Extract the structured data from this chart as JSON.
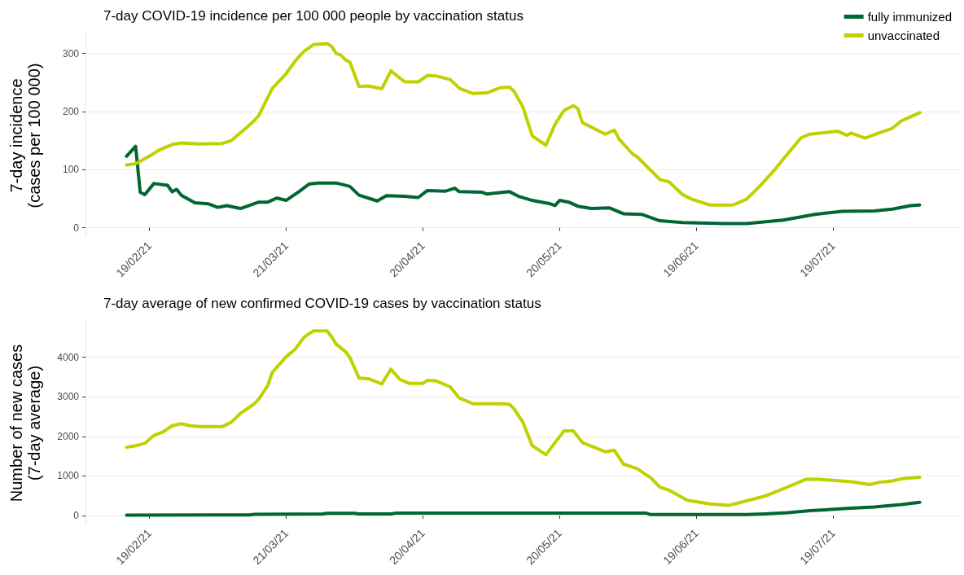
{
  "chart_data": [
    {
      "type": "line",
      "title": "7-day COVID-19 incidence per 100 000 people by vaccination status",
      "ylabel": "7-day incidence\n(cases per 100 000)",
      "legend": "top right",
      "grid": "y",
      "xlim": [
        "2021-02-05",
        "2021-08-16"
      ],
      "ylim": [
        -16,
        333
      ],
      "yticks": [
        0,
        100,
        200,
        300
      ],
      "xticks": [
        {
          "value": "2021-02-19",
          "label": "19/02/21"
        },
        {
          "value": "2021-03-21",
          "label": "21/03/21"
        },
        {
          "value": "2021-04-20",
          "label": "20/04/21"
        },
        {
          "value": "2021-05-20",
          "label": "20/05/21"
        },
        {
          "value": "2021-06-19",
          "label": "19/06/21"
        },
        {
          "value": "2021-07-19",
          "label": "19/07/21"
        }
      ],
      "series": [
        {
          "name": "fully immunized",
          "color": "#006633",
          "x": [
            "2021-02-14",
            "2021-02-16",
            "2021-02-17",
            "2021-02-18",
            "2021-02-20",
            "2021-02-23",
            "2021-02-24",
            "2021-02-25",
            "2021-02-26",
            "2021-03-01",
            "2021-03-04",
            "2021-03-06",
            "2021-03-08",
            "2021-03-11",
            "2021-03-15",
            "2021-03-17",
            "2021-03-19",
            "2021-03-21",
            "2021-03-24",
            "2021-03-26",
            "2021-03-28",
            "2021-04-01",
            "2021-04-04",
            "2021-04-06",
            "2021-04-10",
            "2021-04-12",
            "2021-04-16",
            "2021-04-19",
            "2021-04-21",
            "2021-04-25",
            "2021-04-27",
            "2021-04-28",
            "2021-05-03",
            "2021-05-04",
            "2021-05-09",
            "2021-05-11",
            "2021-05-14",
            "2021-05-18",
            "2021-05-19",
            "2021-05-20",
            "2021-05-22",
            "2021-05-24",
            "2021-05-27",
            "2021-05-31",
            "2021-06-03",
            "2021-06-07",
            "2021-06-11",
            "2021-06-16",
            "2021-06-25",
            "2021-06-30",
            "2021-07-08",
            "2021-07-15",
            "2021-07-21",
            "2021-07-28",
            "2021-08-01",
            "2021-08-05",
            "2021-08-07"
          ],
          "values": [
            123,
            140,
            61,
            57,
            76,
            73,
            62,
            66,
            56,
            43,
            41,
            35,
            38,
            33,
            44,
            44,
            51,
            47,
            63,
            75,
            77,
            77,
            71,
            56,
            46,
            55,
            54,
            52,
            64,
            63,
            68,
            62,
            61,
            58,
            62,
            54,
            47,
            41,
            38,
            47,
            44,
            37,
            33,
            34,
            24,
            23,
            12,
            9,
            7,
            7,
            13,
            23,
            28,
            29,
            32,
            38,
            39
          ]
        },
        {
          "name": "unvaccinated",
          "color": "#bfd200",
          "x": [
            "2021-02-14",
            "2021-02-16",
            "2021-02-19",
            "2021-02-21",
            "2021-02-24",
            "2021-02-26",
            "2021-03-02",
            "2021-03-07",
            "2021-03-09",
            "2021-03-12",
            "2021-03-14",
            "2021-03-15",
            "2021-03-18",
            "2021-03-21",
            "2021-03-23",
            "2021-03-25",
            "2021-03-27",
            "2021-03-30",
            "2021-03-31",
            "2021-04-01",
            "2021-04-02",
            "2021-04-03",
            "2021-04-04",
            "2021-04-06",
            "2021-04-08",
            "2021-04-11",
            "2021-04-13",
            "2021-04-16",
            "2021-04-19",
            "2021-04-21",
            "2021-04-23",
            "2021-04-26",
            "2021-04-28",
            "2021-05-01",
            "2021-05-04",
            "2021-05-07",
            "2021-05-09",
            "2021-05-10",
            "2021-05-12",
            "2021-05-14",
            "2021-05-17",
            "2021-05-19",
            "2021-05-21",
            "2021-05-23",
            "2021-05-24",
            "2021-05-25",
            "2021-05-30",
            "2021-06-01",
            "2021-06-02",
            "2021-06-05",
            "2021-06-06",
            "2021-06-11",
            "2021-06-13",
            "2021-06-16",
            "2021-06-18",
            "2021-06-22",
            "2021-06-27",
            "2021-06-30",
            "2021-07-03",
            "2021-07-06",
            "2021-07-09",
            "2021-07-12",
            "2021-07-14",
            "2021-07-20",
            "2021-07-22",
            "2021-07-23",
            "2021-07-26",
            "2021-07-29",
            "2021-08-01",
            "2021-08-03",
            "2021-08-07"
          ],
          "values": [
            108,
            110,
            123,
            133,
            143,
            146,
            144,
            145,
            150,
            170,
            184,
            193,
            240,
            265,
            287,
            304,
            315,
            317,
            312,
            300,
            297,
            289,
            285,
            243,
            244,
            239,
            270,
            251,
            251,
            262,
            261,
            255,
            240,
            231,
            232,
            241,
            242,
            235,
            207,
            158,
            142,
            178,
            202,
            210,
            205,
            181,
            161,
            168,
            153,
            127,
            122,
            83,
            79,
            57,
            49,
            39,
            39,
            49,
            72,
            98,
            127,
            155,
            161,
            166,
            159,
            163,
            154,
            163,
            171,
            184,
            198
          ]
        }
      ]
    },
    {
      "type": "line",
      "title": "7-day average of new confirmed COVID-19 cases by vaccination status",
      "ylabel": "Number of new cases\n(7-day average)",
      "grid": "y",
      "xlim": [
        "2021-02-05",
        "2021-08-16"
      ],
      "ylim": [
        -226,
        4898
      ],
      "yticks": [
        0,
        1000,
        2000,
        3000,
        4000
      ],
      "xticks": [
        {
          "value": "2021-02-19",
          "label": "19/02/21"
        },
        {
          "value": "2021-03-21",
          "label": "21/03/21"
        },
        {
          "value": "2021-04-20",
          "label": "20/04/21"
        },
        {
          "value": "2021-05-20",
          "label": "20/05/21"
        },
        {
          "value": "2021-06-19",
          "label": "19/06/21"
        },
        {
          "value": "2021-07-19",
          "label": "19/07/21"
        }
      ],
      "series": [
        {
          "color": "#006633",
          "x": [
            "2021-02-14",
            "2021-03-13",
            "2021-03-14",
            "2021-03-29",
            "2021-03-30",
            "2021-04-05",
            "2021-04-06",
            "2021-04-13",
            "2021-04-14",
            "2021-06-08",
            "2021-06-09",
            "2021-06-30",
            "2021-07-04",
            "2021-07-09",
            "2021-07-14",
            "2021-07-22",
            "2021-07-28",
            "2021-08-03",
            "2021-08-07"
          ],
          "values": [
            10,
            15,
            30,
            40,
            55,
            55,
            40,
            40,
            60,
            60,
            25,
            25,
            40,
            70,
            124,
            178,
            217,
            279,
            333
          ]
        },
        {
          "color": "#bfd200",
          "x": [
            "2021-02-14",
            "2021-02-16",
            "2021-02-18",
            "2021-02-20",
            "2021-02-22",
            "2021-02-24",
            "2021-02-26",
            "2021-02-28",
            "2021-03-02",
            "2021-03-07",
            "2021-03-09",
            "2021-03-11",
            "2021-03-14",
            "2021-03-15",
            "2021-03-17",
            "2021-03-18",
            "2021-03-21",
            "2021-03-23",
            "2021-03-25",
            "2021-03-27",
            "2021-03-30",
            "2021-03-31",
            "2021-04-01",
            "2021-04-03",
            "2021-04-04",
            "2021-04-06",
            "2021-04-08",
            "2021-04-11",
            "2021-04-13",
            "2021-04-15",
            "2021-04-17",
            "2021-04-20",
            "2021-04-21",
            "2021-04-23",
            "2021-04-26",
            "2021-04-28",
            "2021-05-01",
            "2021-05-07",
            "2021-05-09",
            "2021-05-10",
            "2021-05-12",
            "2021-05-14",
            "2021-05-17",
            "2021-05-19",
            "2021-05-21",
            "2021-05-23",
            "2021-05-25",
            "2021-05-30",
            "2021-06-01",
            "2021-06-03",
            "2021-06-06",
            "2021-06-09",
            "2021-06-11",
            "2021-06-13",
            "2021-06-17",
            "2021-06-22",
            "2021-06-26",
            "2021-06-30",
            "2021-07-04",
            "2021-07-09",
            "2021-07-13",
            "2021-07-16",
            "2021-07-23",
            "2021-07-27",
            "2021-07-29",
            "2021-08-01",
            "2021-08-03",
            "2021-08-07"
          ],
          "values": [
            1726,
            1763,
            1823,
            2024,
            2113,
            2269,
            2321,
            2269,
            2247,
            2247,
            2358,
            2582,
            2820,
            2939,
            3288,
            3623,
            4010,
            4204,
            4516,
            4665,
            4665,
            4516,
            4330,
            4144,
            3995,
            3474,
            3460,
            3326,
            3698,
            3437,
            3340,
            3340,
            3415,
            3400,
            3251,
            2969,
            2827,
            2827,
            2813,
            2697,
            2348,
            1767,
            1535,
            1845,
            2139,
            2139,
            1845,
            1612,
            1651,
            1302,
            1186,
            953,
            721,
            643,
            388,
            295,
            256,
            372,
            488,
            721,
            915,
            915,
            853,
            783,
            837,
            876,
            930,
            969
          ]
        }
      ]
    }
  ]
}
